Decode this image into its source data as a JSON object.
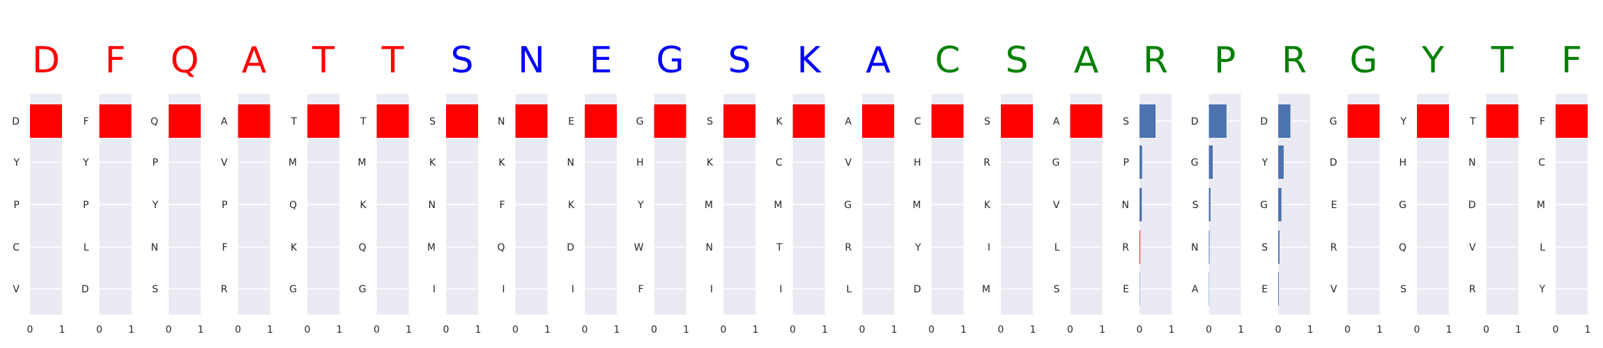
{
  "colors": {
    "red": "#ff0000",
    "blue": "#0000ff",
    "green": "#008000",
    "bar_blue": "#4c72b0",
    "panel_bg": "#eaeaf2",
    "grid": "#ffffff"
  },
  "sequence": [
    {
      "letter": "D",
      "color": "#ff0000"
    },
    {
      "letter": "F",
      "color": "#ff0000"
    },
    {
      "letter": "Q",
      "color": "#ff0000"
    },
    {
      "letter": "A",
      "color": "#ff0000"
    },
    {
      "letter": "T",
      "color": "#ff0000"
    },
    {
      "letter": "T",
      "color": "#ff0000"
    },
    {
      "letter": "S",
      "color": "#0000ff"
    },
    {
      "letter": "N",
      "color": "#0000ff"
    },
    {
      "letter": "E",
      "color": "#0000ff"
    },
    {
      "letter": "G",
      "color": "#0000ff"
    },
    {
      "letter": "S",
      "color": "#0000ff"
    },
    {
      "letter": "K",
      "color": "#0000ff"
    },
    {
      "letter": "A",
      "color": "#0000ff"
    },
    {
      "letter": "C",
      "color": "#008000"
    },
    {
      "letter": "S",
      "color": "#008000"
    },
    {
      "letter": "A",
      "color": "#008000"
    },
    {
      "letter": "R",
      "color": "#008000"
    },
    {
      "letter": "P",
      "color": "#008000"
    },
    {
      "letter": "R",
      "color": "#008000"
    },
    {
      "letter": "G",
      "color": "#008000"
    },
    {
      "letter": "Y",
      "color": "#008000"
    },
    {
      "letter": "T",
      "color": "#008000"
    },
    {
      "letter": "F",
      "color": "#008000"
    }
  ],
  "chart_data": {
    "type": "bar",
    "orientation": "horizontal",
    "xlim": [
      0,
      1
    ],
    "xticks": [
      "0",
      "1"
    ],
    "grid": true,
    "panels": [
      {
        "categories": [
          "D",
          "Y",
          "P",
          "C",
          "V"
        ],
        "values": [
          1.0,
          0,
          0,
          0,
          0
        ],
        "colors": [
          "#ff0000",
          "#ff0000",
          "#ff0000",
          "#ff0000",
          "#ff0000"
        ]
      },
      {
        "categories": [
          "F",
          "Y",
          "P",
          "L",
          "D"
        ],
        "values": [
          1.0,
          0,
          0,
          0,
          0
        ],
        "colors": [
          "#ff0000",
          "#ff0000",
          "#ff0000",
          "#ff0000",
          "#ff0000"
        ]
      },
      {
        "categories": [
          "Q",
          "P",
          "Y",
          "N",
          "S"
        ],
        "values": [
          1.0,
          0,
          0,
          0,
          0
        ],
        "colors": [
          "#ff0000",
          "#ff0000",
          "#ff0000",
          "#ff0000",
          "#ff0000"
        ]
      },
      {
        "categories": [
          "A",
          "V",
          "P",
          "F",
          "R"
        ],
        "values": [
          1.0,
          0,
          0,
          0,
          0
        ],
        "colors": [
          "#ff0000",
          "#ff0000",
          "#ff0000",
          "#ff0000",
          "#ff0000"
        ]
      },
      {
        "categories": [
          "T",
          "M",
          "Q",
          "K",
          "G"
        ],
        "values": [
          1.0,
          0,
          0,
          0,
          0
        ],
        "colors": [
          "#ff0000",
          "#ff0000",
          "#ff0000",
          "#ff0000",
          "#ff0000"
        ]
      },
      {
        "categories": [
          "T",
          "M",
          "K",
          "Q",
          "G"
        ],
        "values": [
          1.0,
          0,
          0,
          0,
          0
        ],
        "colors": [
          "#ff0000",
          "#ff0000",
          "#ff0000",
          "#ff0000",
          "#ff0000"
        ]
      },
      {
        "categories": [
          "S",
          "K",
          "N",
          "M",
          "I"
        ],
        "values": [
          1.0,
          0,
          0,
          0,
          0
        ],
        "colors": [
          "#ff0000",
          "#ff0000",
          "#ff0000",
          "#ff0000",
          "#ff0000"
        ]
      },
      {
        "categories": [
          "N",
          "K",
          "F",
          "Q",
          "I"
        ],
        "values": [
          1.0,
          0,
          0,
          0,
          0
        ],
        "colors": [
          "#ff0000",
          "#ff0000",
          "#ff0000",
          "#ff0000",
          "#ff0000"
        ]
      },
      {
        "categories": [
          "E",
          "N",
          "K",
          "D",
          "I"
        ],
        "values": [
          1.0,
          0,
          0,
          0,
          0
        ],
        "colors": [
          "#ff0000",
          "#ff0000",
          "#ff0000",
          "#ff0000",
          "#ff0000"
        ]
      },
      {
        "categories": [
          "G",
          "H",
          "Y",
          "W",
          "F"
        ],
        "values": [
          1.0,
          0,
          0,
          0,
          0
        ],
        "colors": [
          "#ff0000",
          "#ff0000",
          "#ff0000",
          "#ff0000",
          "#ff0000"
        ]
      },
      {
        "categories": [
          "S",
          "K",
          "M",
          "N",
          "I"
        ],
        "values": [
          1.0,
          0,
          0,
          0,
          0
        ],
        "colors": [
          "#ff0000",
          "#ff0000",
          "#ff0000",
          "#ff0000",
          "#ff0000"
        ]
      },
      {
        "categories": [
          "K",
          "C",
          "M",
          "T",
          "I"
        ],
        "values": [
          1.0,
          0,
          0,
          0,
          0
        ],
        "colors": [
          "#ff0000",
          "#ff0000",
          "#ff0000",
          "#ff0000",
          "#ff0000"
        ]
      },
      {
        "categories": [
          "A",
          "V",
          "G",
          "R",
          "L"
        ],
        "values": [
          1.0,
          0,
          0,
          0,
          0
        ],
        "colors": [
          "#ff0000",
          "#ff0000",
          "#ff0000",
          "#ff0000",
          "#ff0000"
        ]
      },
      {
        "categories": [
          "C",
          "H",
          "M",
          "Y",
          "D"
        ],
        "values": [
          1.0,
          0,
          0,
          0,
          0
        ],
        "colors": [
          "#ff0000",
          "#ff0000",
          "#ff0000",
          "#ff0000",
          "#ff0000"
        ]
      },
      {
        "categories": [
          "S",
          "R",
          "K",
          "I",
          "M"
        ],
        "values": [
          1.0,
          0,
          0,
          0,
          0
        ],
        "colors": [
          "#ff0000",
          "#ff0000",
          "#ff0000",
          "#ff0000",
          "#ff0000"
        ]
      },
      {
        "categories": [
          "A",
          "G",
          "V",
          "L",
          "S"
        ],
        "values": [
          1.0,
          0,
          0,
          0,
          0
        ],
        "colors": [
          "#ff0000",
          "#ff0000",
          "#ff0000",
          "#ff0000",
          "#ff0000"
        ]
      },
      {
        "categories": [
          "S",
          "P",
          "N",
          "R",
          "E"
        ],
        "values": [
          0.5,
          0.08,
          0.07,
          0.02,
          0.01
        ],
        "colors": [
          "#4c72b0",
          "#4c72b0",
          "#4c72b0",
          "#ff0000",
          "#4c72b0"
        ]
      },
      {
        "categories": [
          "D",
          "G",
          "S",
          "N",
          "A"
        ],
        "values": [
          0.55,
          0.12,
          0.05,
          0.02,
          0.01
        ],
        "colors": [
          "#4c72b0",
          "#4c72b0",
          "#4c72b0",
          "#4c72b0",
          "#4c72b0"
        ]
      },
      {
        "categories": [
          "D",
          "Y",
          "G",
          "S",
          "E"
        ],
        "values": [
          0.38,
          0.17,
          0.1,
          0.04,
          0.02
        ],
        "colors": [
          "#4c72b0",
          "#4c72b0",
          "#4c72b0",
          "#4c72b0",
          "#4c72b0"
        ]
      },
      {
        "categories": [
          "G",
          "D",
          "E",
          "R",
          "V"
        ],
        "values": [
          1.0,
          0,
          0,
          0,
          0
        ],
        "colors": [
          "#ff0000",
          "#ff0000",
          "#ff0000",
          "#ff0000",
          "#ff0000"
        ]
      },
      {
        "categories": [
          "Y",
          "H",
          "G",
          "Q",
          "S"
        ],
        "values": [
          1.0,
          0,
          0,
          0,
          0
        ],
        "colors": [
          "#ff0000",
          "#ff0000",
          "#ff0000",
          "#ff0000",
          "#ff0000"
        ]
      },
      {
        "categories": [
          "T",
          "N",
          "D",
          "V",
          "R"
        ],
        "values": [
          1.0,
          0,
          0,
          0,
          0
        ],
        "colors": [
          "#ff0000",
          "#ff0000",
          "#ff0000",
          "#ff0000",
          "#ff0000"
        ]
      },
      {
        "categories": [
          "F",
          "C",
          "M",
          "L",
          "Y"
        ],
        "values": [
          1.0,
          0,
          0,
          0,
          0
        ],
        "colors": [
          "#ff0000",
          "#ff0000",
          "#ff0000",
          "#ff0000",
          "#ff0000"
        ]
      }
    ]
  }
}
